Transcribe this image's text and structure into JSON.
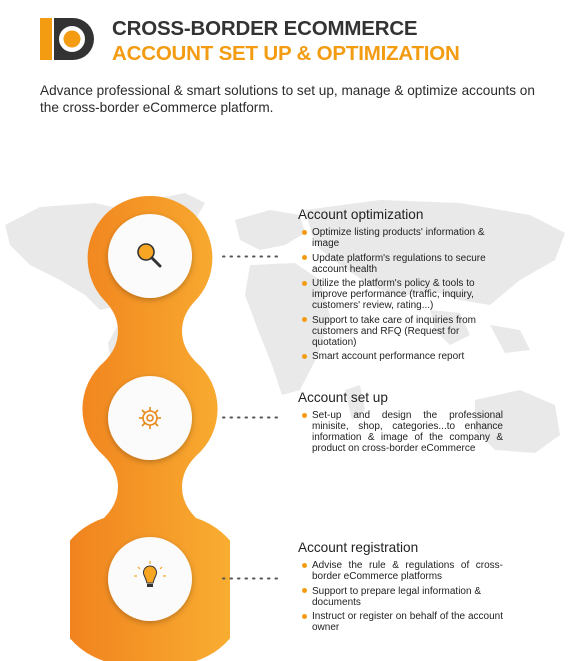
{
  "header": {
    "title_line1": "CROSS-BORDER ECOMMERCE",
    "title_line2": "ACCOUNT SET UP & OPTIMIZATION",
    "intro": "Advance professional & smart solutions to set up, manage & optimize accounts on the cross-border eCommerce platform."
  },
  "colors": {
    "accent": "#f39c12",
    "dark": "#333333",
    "map": "#e9e9e9"
  },
  "sections": [
    {
      "title": "Account optimization",
      "icon": "magnifier-icon",
      "items": [
        "Optimize listing products' information & image",
        "Update platform's regulations to secure account health",
        "Utilize the platform's policy & tools to improve performance (traffic, inquiry, customers' review, rating...)",
        "Support to take care of inquiries from customers and RFQ (Request for quotation)",
        "Smart account performance report"
      ]
    },
    {
      "title": "Account set up",
      "icon": "gear-icon",
      "items": [
        "Set-up and design the professional minisite, shop, categories...to enhance information & image of the company & product on cross-border eCommerce"
      ]
    },
    {
      "title": "Account registration",
      "icon": "lightbulb-icon",
      "items": [
        "Advise the rule & regulations of cross-border eCommerce platforms",
        "Support to prepare legal information & documents",
        "Instruct or register on behalf of the account owner"
      ]
    }
  ]
}
